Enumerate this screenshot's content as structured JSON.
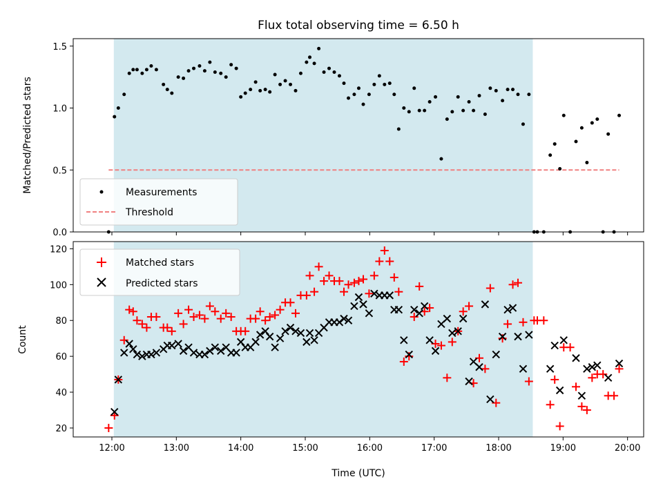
{
  "chart_data": [
    {
      "type": "scatter",
      "title": "Flux total observing time = 6.50 h",
      "xlabel": "",
      "ylabel": "Matched/Predicted stars",
      "xlim": [
        11.4,
        20.25
      ],
      "ylim": [
        0.0,
        1.56
      ],
      "x_ticks": [
        12,
        13,
        14,
        15,
        16,
        17,
        18,
        19,
        20
      ],
      "y_ticks": [
        0.0,
        0.5,
        1.0,
        1.5
      ],
      "y_tick_labels": [
        "0.0",
        "0.5",
        "1.0",
        "1.5"
      ],
      "shaded_region": [
        12.03,
        18.53
      ],
      "shaded_color": "#d3e9ef",
      "legend_position": "lower-left",
      "series": [
        {
          "name": "Measurements",
          "marker": "dot",
          "color": "#000000",
          "x": [
            11.95,
            12.04,
            12.1,
            12.19,
            12.27,
            12.33,
            12.39,
            12.47,
            12.54,
            12.61,
            12.69,
            12.8,
            12.86,
            12.93,
            13.03,
            13.11,
            13.19,
            13.27,
            13.36,
            13.44,
            13.52,
            13.6,
            13.69,
            13.77,
            13.85,
            13.93,
            14.0,
            14.07,
            14.15,
            14.23,
            14.3,
            14.38,
            14.45,
            14.53,
            14.61,
            14.69,
            14.77,
            14.85,
            14.93,
            15.02,
            15.07,
            15.14,
            15.21,
            15.29,
            15.37,
            15.45,
            15.53,
            15.6,
            15.67,
            15.76,
            15.83,
            15.9,
            15.99,
            16.07,
            16.15,
            16.23,
            16.31,
            16.38,
            16.45,
            16.53,
            16.61,
            16.69,
            16.77,
            16.85,
            16.93,
            17.02,
            17.11,
            17.2,
            17.28,
            17.37,
            17.45,
            17.54,
            17.61,
            17.7,
            17.79,
            17.87,
            17.96,
            18.06,
            18.14,
            18.22,
            18.3,
            18.38,
            18.47,
            18.55,
            18.6,
            18.7,
            18.8,
            18.87,
            18.95,
            19.01,
            19.11,
            19.2,
            19.29,
            19.37,
            19.45,
            19.53,
            19.62,
            19.7,
            19.79,
            19.87
          ],
          "y": [
            0.0,
            0.93,
            1.0,
            1.11,
            1.28,
            1.31,
            1.31,
            1.28,
            1.31,
            1.34,
            1.31,
            1.19,
            1.15,
            1.12,
            1.25,
            1.24,
            1.3,
            1.32,
            1.34,
            1.3,
            1.37,
            1.29,
            1.28,
            1.25,
            1.35,
            1.32,
            1.09,
            1.12,
            1.15,
            1.21,
            1.14,
            1.15,
            1.13,
            1.27,
            1.19,
            1.22,
            1.19,
            1.14,
            1.28,
            1.37,
            1.41,
            1.36,
            1.48,
            1.29,
            1.32,
            1.29,
            1.26,
            1.2,
            1.08,
            1.11,
            1.16,
            1.03,
            1.11,
            1.19,
            1.26,
            1.19,
            1.2,
            1.11,
            0.83,
            1.0,
            0.97,
            1.16,
            0.98,
            0.98,
            1.05,
            1.09,
            0.59,
            0.91,
            0.97,
            1.09,
            0.98,
            1.05,
            0.98,
            1.1,
            0.95,
            1.16,
            1.14,
            1.06,
            1.15,
            1.15,
            1.11,
            0.87,
            1.11,
            0.0,
            0.0,
            0.0,
            0.62,
            0.71,
            0.51,
            0.94,
            0.0,
            0.73,
            0.84,
            0.56,
            0.88,
            0.91,
            0.0,
            0.79,
            0.0,
            0.94
          ]
        },
        {
          "name": "Threshold",
          "style": "dashed",
          "color": "#f08080",
          "x": [
            11.95,
            19.87
          ],
          "y": [
            0.5,
            0.5
          ]
        }
      ]
    },
    {
      "type": "scatter",
      "title": "",
      "xlabel": "Time (UTC)",
      "ylabel": "Count",
      "xlim": [
        11.4,
        20.25
      ],
      "ylim": [
        15,
        124
      ],
      "x_ticks": [
        12,
        13,
        14,
        15,
        16,
        17,
        18,
        19,
        20
      ],
      "x_tick_labels": [
        "12:00",
        "13:00",
        "14:00",
        "15:00",
        "16:00",
        "17:00",
        "18:00",
        "19:00",
        "20:00"
      ],
      "y_ticks": [
        20,
        40,
        60,
        80,
        100,
        120
      ],
      "y_tick_labels": [
        "20",
        "40",
        "60",
        "80",
        "100",
        "120"
      ],
      "shaded_region": [
        12.03,
        18.53
      ],
      "shaded_color": "#d3e9ef",
      "legend_position": "upper-left",
      "series": [
        {
          "name": "Matched stars",
          "marker": "plus",
          "color": "#ff0000",
          "x": [
            11.95,
            12.04,
            12.1,
            12.19,
            12.27,
            12.33,
            12.39,
            12.47,
            12.54,
            12.61,
            12.69,
            12.8,
            12.86,
            12.93,
            13.03,
            13.11,
            13.19,
            13.27,
            13.36,
            13.44,
            13.52,
            13.6,
            13.69,
            13.77,
            13.85,
            13.93,
            14.0,
            14.07,
            14.15,
            14.23,
            14.3,
            14.38,
            14.45,
            14.53,
            14.61,
            14.69,
            14.77,
            14.85,
            14.93,
            15.02,
            15.07,
            15.14,
            15.21,
            15.29,
            15.37,
            15.45,
            15.53,
            15.6,
            15.67,
            15.76,
            15.83,
            15.9,
            15.99,
            16.07,
            16.15,
            16.23,
            16.31,
            16.38,
            16.45,
            16.53,
            16.61,
            16.69,
            16.77,
            16.85,
            16.93,
            17.02,
            17.11,
            17.2,
            17.28,
            17.37,
            17.45,
            17.54,
            17.61,
            17.7,
            17.79,
            17.87,
            17.96,
            18.06,
            18.14,
            18.22,
            18.3,
            18.38,
            18.47,
            18.55,
            18.6,
            18.7,
            18.8,
            18.87,
            18.95,
            19.01,
            19.11,
            19.2,
            19.29,
            19.37,
            19.45,
            19.53,
            19.62,
            19.7,
            19.79,
            19.87
          ],
          "y": [
            20,
            27,
            47,
            69,
            86,
            85,
            80,
            78,
            76,
            82,
            82,
            76,
            76,
            74,
            84,
            78,
            86,
            82,
            83,
            81,
            88,
            85,
            81,
            84,
            82,
            74,
            74,
            74,
            81,
            81,
            85,
            80,
            82,
            83,
            86,
            90,
            90,
            84,
            94,
            94,
            105,
            96,
            110,
            102,
            105,
            102,
            102,
            96,
            100,
            101,
            102,
            103,
            95,
            105,
            113,
            119,
            113,
            104,
            96,
            57,
            60,
            82,
            99,
            85,
            87,
            67,
            66,
            48,
            68,
            74,
            85,
            88,
            45,
            59,
            53,
            98,
            34,
            70,
            78,
            100,
            101,
            79,
            46,
            80,
            80,
            80,
            33,
            47,
            21,
            65,
            65,
            43,
            32,
            30,
            48,
            50,
            50,
            38,
            38,
            53
          ]
        },
        {
          "name": "Predicted stars",
          "marker": "x",
          "color": "#000000",
          "x": [
            11.95,
            12.04,
            12.1,
            12.19,
            12.27,
            12.33,
            12.39,
            12.47,
            12.54,
            12.61,
            12.69,
            12.8,
            12.86,
            12.93,
            13.03,
            13.11,
            13.19,
            13.27,
            13.36,
            13.44,
            13.52,
            13.6,
            13.69,
            13.77,
            13.85,
            13.93,
            14.0,
            14.07,
            14.15,
            14.23,
            14.3,
            14.38,
            14.45,
            14.53,
            14.61,
            14.69,
            14.77,
            14.85,
            14.93,
            15.02,
            15.07,
            15.14,
            15.21,
            15.29,
            15.37,
            15.45,
            15.53,
            15.6,
            15.67,
            15.76,
            15.83,
            15.9,
            15.99,
            16.07,
            16.15,
            16.23,
            16.31,
            16.38,
            16.45,
            16.53,
            16.61,
            16.69,
            16.77,
            16.85,
            16.93,
            17.02,
            17.11,
            17.2,
            17.28,
            17.37,
            17.45,
            17.54,
            17.61,
            17.7,
            17.79,
            17.87,
            17.96,
            18.06,
            18.14,
            18.22,
            18.3,
            18.38,
            18.47,
            18.55,
            18.6,
            18.7,
            18.8,
            18.87,
            18.95,
            19.01,
            19.11,
            19.2,
            19.29,
            19.37,
            19.45,
            19.53,
            19.62,
            19.7,
            19.79,
            19.87
          ],
          "y": [
            null,
            29,
            47,
            62,
            67,
            64,
            61,
            60,
            61,
            61,
            62,
            64,
            66,
            66,
            67,
            63,
            65,
            62,
            61,
            61,
            63,
            65,
            63,
            65,
            62,
            62,
            68,
            65,
            65,
            68,
            72,
            74,
            71,
            65,
            70,
            74,
            76,
            74,
            73,
            68,
            73,
            69,
            73,
            76,
            79,
            79,
            79,
            81,
            80,
            88,
            93,
            89,
            84,
            95,
            94,
            94,
            94,
            86,
            86,
            69,
            61,
            86,
            84,
            88,
            69,
            63,
            78,
            81,
            73,
            74,
            81,
            46,
            57,
            54,
            89,
            36,
            61,
            71,
            86,
            87,
            71,
            53,
            72,
            null,
            null,
            null,
            53,
            66,
            41,
            69,
            null,
            59,
            38,
            53,
            54,
            55,
            null,
            48,
            null,
            56
          ]
        }
      ]
    }
  ]
}
